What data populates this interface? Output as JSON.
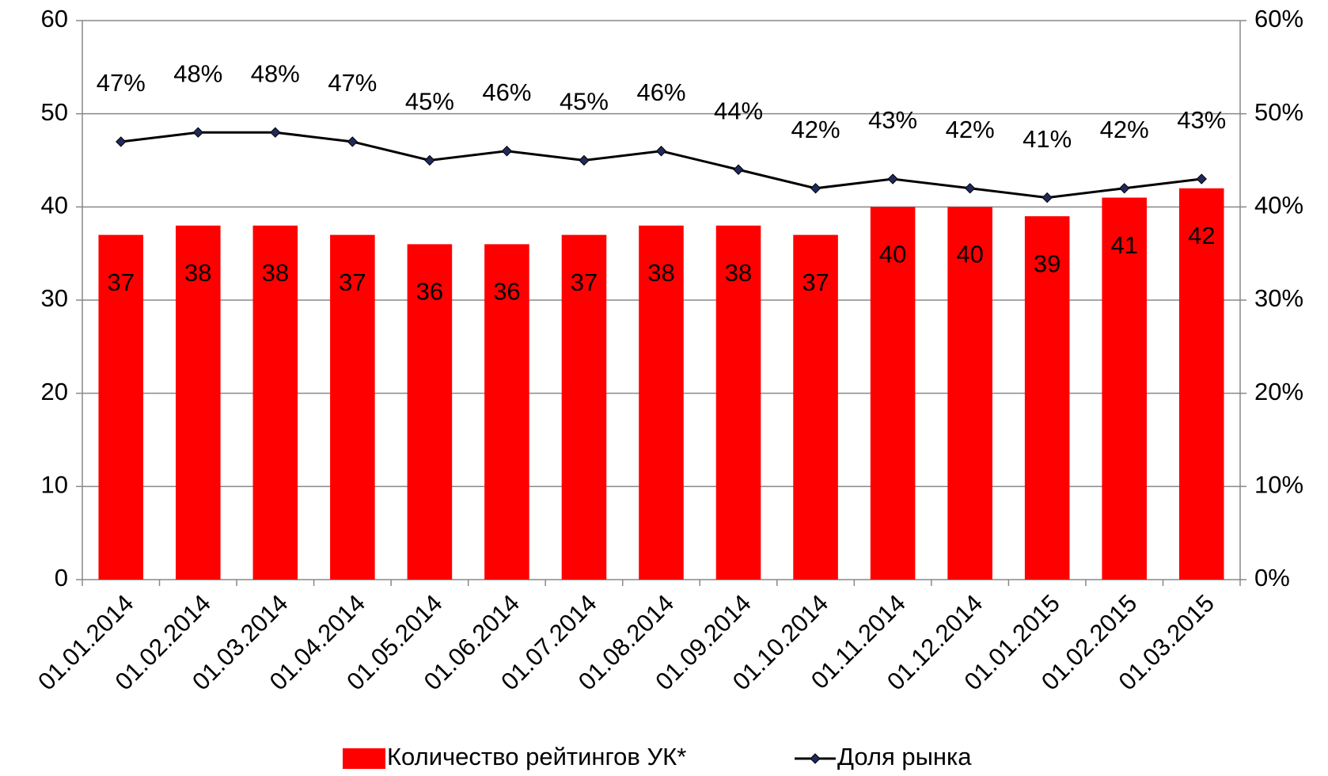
{
  "chart_data": {
    "type": "bar_line",
    "categories": [
      "01.01.2014",
      "01.02.2014",
      "01.03.2014",
      "01.04.2014",
      "01.05.2014",
      "01.06.2014",
      "01.07.2014",
      "01.08.2014",
      "01.09.2014",
      "01.10.2014",
      "01.11.2014",
      "01.12.2014",
      "01.01.2015",
      "01.02.2015",
      "01.03.2015"
    ],
    "series": [
      {
        "name": "Количество рейтингов УК*",
        "type": "bar",
        "color": "#ff0000",
        "values": [
          37,
          38,
          38,
          37,
          36,
          36,
          37,
          38,
          38,
          37,
          40,
          40,
          39,
          41,
          42
        ]
      },
      {
        "name": "Доля рынка",
        "type": "line",
        "axis": "y2",
        "color": "#000000",
        "marker_color": "#1f2a5a",
        "values": [
          47,
          48,
          48,
          47,
          45,
          46,
          45,
          46,
          44,
          42,
          43,
          42,
          41,
          42,
          43
        ],
        "value_labels": [
          "47%",
          "48%",
          "48%",
          "47%",
          "45%",
          "46%",
          "45%",
          "46%",
          "44%",
          "42%",
          "43%",
          "42%",
          "41%",
          "42%",
          "43%"
        ]
      }
    ],
    "ylim": [
      0,
      60
    ],
    "yticks": [
      0,
      10,
      20,
      30,
      40,
      50,
      60
    ],
    "y2lim": [
      0,
      60
    ],
    "y2ticks": [
      {
        "value": 0,
        "label": "0%"
      },
      {
        "value": 10,
        "label": "10%"
      },
      {
        "value": 20,
        "label": "20%"
      },
      {
        "value": 30,
        "label": "30%"
      },
      {
        "value": 40,
        "label": "40%"
      },
      {
        "value": 50,
        "label": "50%"
      },
      {
        "value": 60,
        "label": "60%"
      }
    ],
    "grid": true,
    "legend": "bottom"
  }
}
